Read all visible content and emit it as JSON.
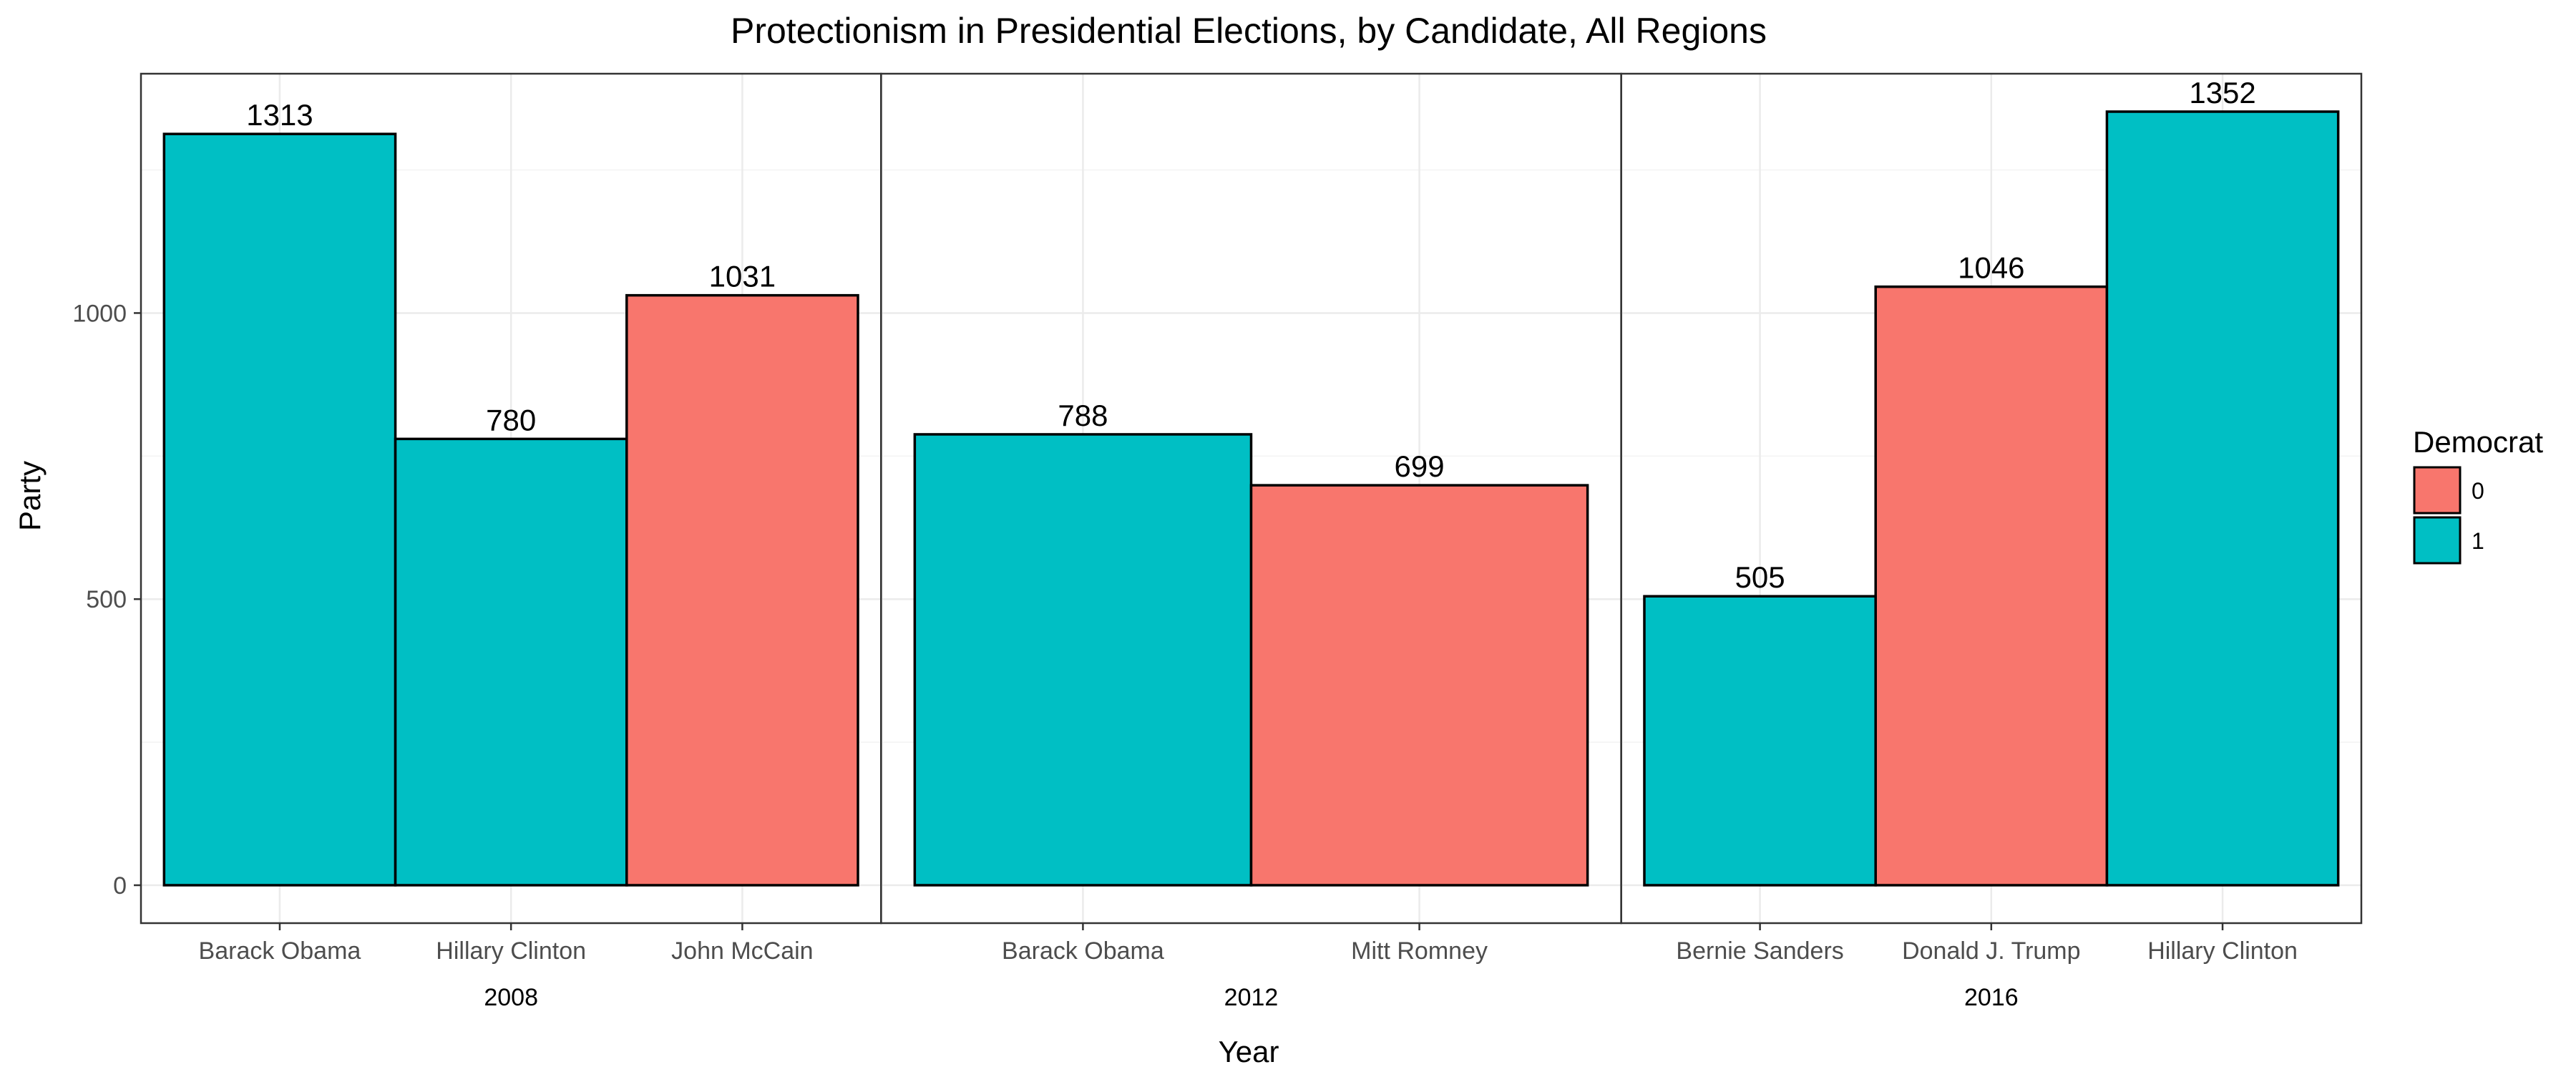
{
  "chart_data": {
    "type": "bar",
    "title": "Protectionism in Presidential Elections, by Candidate, All Regions",
    "xlabel": "Year",
    "ylabel": "Party",
    "ylim": [
      0,
      1400
    ],
    "yticks": [
      0,
      500,
      1000
    ],
    "grid": true,
    "legend": {
      "title": "Democrat",
      "position": "right",
      "entries": [
        {
          "label": "0",
          "color": "#F8766D"
        },
        {
          "label": "1",
          "color": "#00BFC4"
        }
      ]
    },
    "facets": [
      {
        "label": "2008",
        "bars": [
          {
            "category": "Barack Obama",
            "value": 1313,
            "group": "1"
          },
          {
            "category": "Hillary Clinton",
            "value": 780,
            "group": "1"
          },
          {
            "category": "John McCain",
            "value": 1031,
            "group": "0"
          }
        ]
      },
      {
        "label": "2012",
        "bars": [
          {
            "category": "Barack Obama",
            "value": 788,
            "group": "1"
          },
          {
            "category": "Mitt Romney",
            "value": 699,
            "group": "0"
          }
        ]
      },
      {
        "label": "2016",
        "bars": [
          {
            "category": "Bernie Sanders",
            "value": 505,
            "group": "1"
          },
          {
            "category": "Donald J. Trump",
            "value": 1046,
            "group": "0"
          },
          {
            "category": "Hillary Clinton",
            "value": 1352,
            "group": "1"
          }
        ]
      }
    ]
  }
}
